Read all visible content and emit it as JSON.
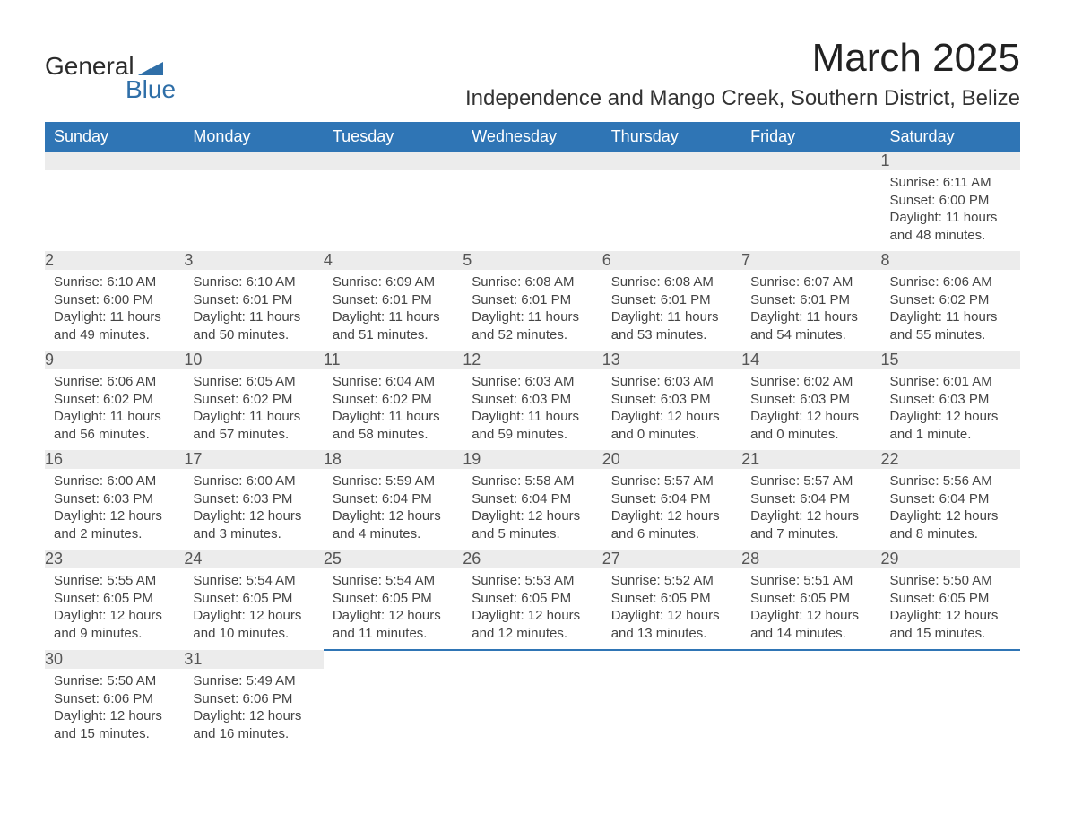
{
  "logo": {
    "text_general": "General",
    "text_blue": "Blue",
    "shape_color": "#2f6fa8"
  },
  "title": "March 2025",
  "location": "Independence and Mango Creek, Southern District, Belize",
  "colors": {
    "header_bg": "#2f75b5",
    "header_text": "#ffffff",
    "daynum_bg": "#ececec",
    "border": "#2f75b5",
    "text": "#3a3a3a",
    "background": "#ffffff"
  },
  "day_headers": [
    "Sunday",
    "Monday",
    "Tuesday",
    "Wednesday",
    "Thursday",
    "Friday",
    "Saturday"
  ],
  "weeks": [
    [
      {
        "num": "",
        "sunrise": "",
        "sunset": "",
        "daylight": ""
      },
      {
        "num": "",
        "sunrise": "",
        "sunset": "",
        "daylight": ""
      },
      {
        "num": "",
        "sunrise": "",
        "sunset": "",
        "daylight": ""
      },
      {
        "num": "",
        "sunrise": "",
        "sunset": "",
        "daylight": ""
      },
      {
        "num": "",
        "sunrise": "",
        "sunset": "",
        "daylight": ""
      },
      {
        "num": "",
        "sunrise": "",
        "sunset": "",
        "daylight": ""
      },
      {
        "num": "1",
        "sunrise": "Sunrise: 6:11 AM",
        "sunset": "Sunset: 6:00 PM",
        "daylight": "Daylight: 11 hours and 48 minutes."
      }
    ],
    [
      {
        "num": "2",
        "sunrise": "Sunrise: 6:10 AM",
        "sunset": "Sunset: 6:00 PM",
        "daylight": "Daylight: 11 hours and 49 minutes."
      },
      {
        "num": "3",
        "sunrise": "Sunrise: 6:10 AM",
        "sunset": "Sunset: 6:01 PM",
        "daylight": "Daylight: 11 hours and 50 minutes."
      },
      {
        "num": "4",
        "sunrise": "Sunrise: 6:09 AM",
        "sunset": "Sunset: 6:01 PM",
        "daylight": "Daylight: 11 hours and 51 minutes."
      },
      {
        "num": "5",
        "sunrise": "Sunrise: 6:08 AM",
        "sunset": "Sunset: 6:01 PM",
        "daylight": "Daylight: 11 hours and 52 minutes."
      },
      {
        "num": "6",
        "sunrise": "Sunrise: 6:08 AM",
        "sunset": "Sunset: 6:01 PM",
        "daylight": "Daylight: 11 hours and 53 minutes."
      },
      {
        "num": "7",
        "sunrise": "Sunrise: 6:07 AM",
        "sunset": "Sunset: 6:01 PM",
        "daylight": "Daylight: 11 hours and 54 minutes."
      },
      {
        "num": "8",
        "sunrise": "Sunrise: 6:06 AM",
        "sunset": "Sunset: 6:02 PM",
        "daylight": "Daylight: 11 hours and 55 minutes."
      }
    ],
    [
      {
        "num": "9",
        "sunrise": "Sunrise: 6:06 AM",
        "sunset": "Sunset: 6:02 PM",
        "daylight": "Daylight: 11 hours and 56 minutes."
      },
      {
        "num": "10",
        "sunrise": "Sunrise: 6:05 AM",
        "sunset": "Sunset: 6:02 PM",
        "daylight": "Daylight: 11 hours and 57 minutes."
      },
      {
        "num": "11",
        "sunrise": "Sunrise: 6:04 AM",
        "sunset": "Sunset: 6:02 PM",
        "daylight": "Daylight: 11 hours and 58 minutes."
      },
      {
        "num": "12",
        "sunrise": "Sunrise: 6:03 AM",
        "sunset": "Sunset: 6:03 PM",
        "daylight": "Daylight: 11 hours and 59 minutes."
      },
      {
        "num": "13",
        "sunrise": "Sunrise: 6:03 AM",
        "sunset": "Sunset: 6:03 PM",
        "daylight": "Daylight: 12 hours and 0 minutes."
      },
      {
        "num": "14",
        "sunrise": "Sunrise: 6:02 AM",
        "sunset": "Sunset: 6:03 PM",
        "daylight": "Daylight: 12 hours and 0 minutes."
      },
      {
        "num": "15",
        "sunrise": "Sunrise: 6:01 AM",
        "sunset": "Sunset: 6:03 PM",
        "daylight": "Daylight: 12 hours and 1 minute."
      }
    ],
    [
      {
        "num": "16",
        "sunrise": "Sunrise: 6:00 AM",
        "sunset": "Sunset: 6:03 PM",
        "daylight": "Daylight: 12 hours and 2 minutes."
      },
      {
        "num": "17",
        "sunrise": "Sunrise: 6:00 AM",
        "sunset": "Sunset: 6:03 PM",
        "daylight": "Daylight: 12 hours and 3 minutes."
      },
      {
        "num": "18",
        "sunrise": "Sunrise: 5:59 AM",
        "sunset": "Sunset: 6:04 PM",
        "daylight": "Daylight: 12 hours and 4 minutes."
      },
      {
        "num": "19",
        "sunrise": "Sunrise: 5:58 AM",
        "sunset": "Sunset: 6:04 PM",
        "daylight": "Daylight: 12 hours and 5 minutes."
      },
      {
        "num": "20",
        "sunrise": "Sunrise: 5:57 AM",
        "sunset": "Sunset: 6:04 PM",
        "daylight": "Daylight: 12 hours and 6 minutes."
      },
      {
        "num": "21",
        "sunrise": "Sunrise: 5:57 AM",
        "sunset": "Sunset: 6:04 PM",
        "daylight": "Daylight: 12 hours and 7 minutes."
      },
      {
        "num": "22",
        "sunrise": "Sunrise: 5:56 AM",
        "sunset": "Sunset: 6:04 PM",
        "daylight": "Daylight: 12 hours and 8 minutes."
      }
    ],
    [
      {
        "num": "23",
        "sunrise": "Sunrise: 5:55 AM",
        "sunset": "Sunset: 6:05 PM",
        "daylight": "Daylight: 12 hours and 9 minutes."
      },
      {
        "num": "24",
        "sunrise": "Sunrise: 5:54 AM",
        "sunset": "Sunset: 6:05 PM",
        "daylight": "Daylight: 12 hours and 10 minutes."
      },
      {
        "num": "25",
        "sunrise": "Sunrise: 5:54 AM",
        "sunset": "Sunset: 6:05 PM",
        "daylight": "Daylight: 12 hours and 11 minutes."
      },
      {
        "num": "26",
        "sunrise": "Sunrise: 5:53 AM",
        "sunset": "Sunset: 6:05 PM",
        "daylight": "Daylight: 12 hours and 12 minutes."
      },
      {
        "num": "27",
        "sunrise": "Sunrise: 5:52 AM",
        "sunset": "Sunset: 6:05 PM",
        "daylight": "Daylight: 12 hours and 13 minutes."
      },
      {
        "num": "28",
        "sunrise": "Sunrise: 5:51 AM",
        "sunset": "Sunset: 6:05 PM",
        "daylight": "Daylight: 12 hours and 14 minutes."
      },
      {
        "num": "29",
        "sunrise": "Sunrise: 5:50 AM",
        "sunset": "Sunset: 6:05 PM",
        "daylight": "Daylight: 12 hours and 15 minutes."
      }
    ],
    [
      {
        "num": "30",
        "sunrise": "Sunrise: 5:50 AM",
        "sunset": "Sunset: 6:06 PM",
        "daylight": "Daylight: 12 hours and 15 minutes."
      },
      {
        "num": "31",
        "sunrise": "Sunrise: 5:49 AM",
        "sunset": "Sunset: 6:06 PM",
        "daylight": "Daylight: 12 hours and 16 minutes."
      },
      {
        "num": "",
        "sunrise": "",
        "sunset": "",
        "daylight": ""
      },
      {
        "num": "",
        "sunrise": "",
        "sunset": "",
        "daylight": ""
      },
      {
        "num": "",
        "sunrise": "",
        "sunset": "",
        "daylight": ""
      },
      {
        "num": "",
        "sunrise": "",
        "sunset": "",
        "daylight": ""
      },
      {
        "num": "",
        "sunrise": "",
        "sunset": "",
        "daylight": ""
      }
    ]
  ]
}
